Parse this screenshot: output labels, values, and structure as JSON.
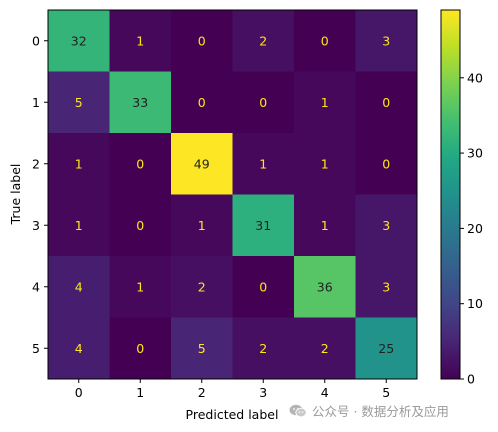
{
  "chart_data": {
    "type": "heatmap",
    "xlabel": "Predicted label",
    "ylabel": "True label",
    "x_ticks": [
      "0",
      "1",
      "2",
      "3",
      "4",
      "5"
    ],
    "y_ticks": [
      "0",
      "1",
      "2",
      "3",
      "4",
      "5"
    ],
    "matrix": [
      [
        32,
        1,
        0,
        2,
        0,
        3
      ],
      [
        5,
        33,
        0,
        0,
        1,
        0
      ],
      [
        1,
        0,
        49,
        1,
        1,
        0
      ],
      [
        1,
        0,
        1,
        31,
        1,
        3
      ],
      [
        4,
        1,
        2,
        0,
        36,
        3
      ],
      [
        4,
        0,
        5,
        2,
        2,
        25
      ]
    ],
    "colormap": "viridis",
    "colorbar": {
      "min": 0,
      "max": 49,
      "ticks": [
        0,
        10,
        20,
        30,
        40
      ]
    },
    "text_color_low": "#ffe619",
    "text_color_high": "#222222"
  },
  "watermark": {
    "text": "公众号 · 数据分析及应用",
    "icon": "wechat-icon"
  }
}
